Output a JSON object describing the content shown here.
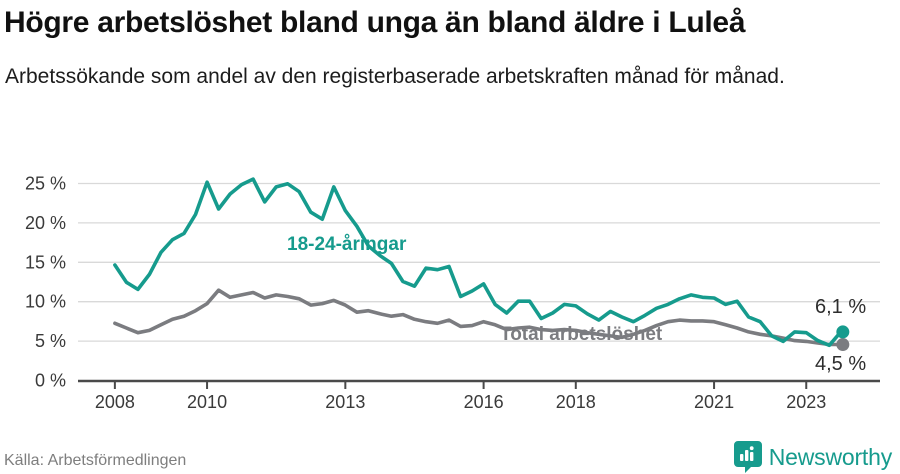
{
  "header": {
    "title": "Högre arbetslöshet bland unga än bland äldre i Luleå",
    "subtitle": "Arbetssökande som andel av den registerbaserade arbetskraften månad för månad."
  },
  "colors": {
    "teal": "#169b8d",
    "gray_line": "#7b7c80",
    "axis": "#4a4a4a",
    "grid": "#d9d9d9",
    "tick_text": "#3a3a3a"
  },
  "chart_data": {
    "type": "line",
    "title": "",
    "xlabel": "",
    "ylabel": "",
    "x_unit": "decimal_year",
    "ylim": [
      0,
      26.5
    ],
    "xlim": [
      2007.2,
      2024.6
    ],
    "grid": "horizontal",
    "legend_position": "inline-labels",
    "x": [
      2008.0,
      2008.25,
      2008.5,
      2008.75,
      2009.0,
      2009.25,
      2009.5,
      2009.75,
      2010.0,
      2010.25,
      2010.5,
      2010.75,
      2011.0,
      2011.25,
      2011.5,
      2011.75,
      2012.0,
      2012.25,
      2012.5,
      2012.75,
      2013.0,
      2013.25,
      2013.5,
      2013.75,
      2014.0,
      2014.25,
      2014.5,
      2014.75,
      2015.0,
      2015.25,
      2015.5,
      2015.75,
      2016.0,
      2016.25,
      2016.5,
      2016.75,
      2017.0,
      2017.25,
      2017.5,
      2017.75,
      2018.0,
      2018.25,
      2018.5,
      2018.75,
      2019.0,
      2019.25,
      2019.5,
      2019.75,
      2020.0,
      2020.25,
      2020.5,
      2020.75,
      2021.0,
      2021.25,
      2021.5,
      2021.75,
      2022.0,
      2022.25,
      2022.5,
      2022.75,
      2023.0,
      2023.25,
      2023.5,
      2023.75
    ],
    "series": [
      {
        "name": "18-24-åringar",
        "color": "#169b8d",
        "end_label": "6,1 %",
        "end_value": 6.1,
        "values": [
          14.6,
          12.4,
          11.5,
          13.4,
          16.2,
          17.8,
          18.6,
          21.0,
          25.1,
          21.7,
          23.6,
          24.8,
          25.5,
          22.6,
          24.5,
          24.9,
          23.9,
          21.3,
          20.4,
          24.5,
          21.5,
          19.5,
          17.0,
          15.8,
          14.8,
          12.5,
          11.9,
          14.2,
          14.0,
          14.4,
          10.6,
          11.3,
          12.2,
          9.6,
          8.5,
          10.0,
          10.0,
          7.8,
          8.5,
          9.6,
          9.4,
          8.4,
          7.6,
          8.7,
          8.0,
          7.4,
          8.2,
          9.1,
          9.6,
          10.3,
          10.8,
          10.5,
          10.4,
          9.6,
          10.0,
          8.0,
          7.4,
          5.6,
          4.9,
          6.1,
          6.0,
          5.0,
          4.4,
          6.1
        ]
      },
      {
        "name": "Total arbetslöshet",
        "color": "#7b7c80",
        "end_label": "4,5 %",
        "end_value": 4.5,
        "values": [
          7.2,
          6.6,
          6.0,
          6.3,
          7.0,
          7.7,
          8.1,
          8.8,
          9.7,
          11.4,
          10.5,
          10.8,
          11.1,
          10.4,
          10.8,
          10.6,
          10.3,
          9.5,
          9.7,
          10.1,
          9.5,
          8.6,
          8.8,
          8.4,
          8.1,
          8.3,
          7.7,
          7.4,
          7.2,
          7.6,
          6.8,
          6.9,
          7.4,
          7.0,
          6.4,
          6.6,
          6.7,
          6.4,
          6.3,
          6.4,
          6.3,
          6.0,
          5.8,
          5.6,
          5.4,
          5.8,
          6.3,
          6.9,
          7.4,
          7.6,
          7.5,
          7.5,
          7.4,
          7.0,
          6.6,
          6.1,
          5.8,
          5.6,
          5.3,
          5.0,
          4.9,
          4.7,
          4.5,
          4.5
        ]
      }
    ],
    "xticks": [
      {
        "v": 2008,
        "label": "2008"
      },
      {
        "v": 2010,
        "label": "2010"
      },
      {
        "v": 2013,
        "label": "2013"
      },
      {
        "v": 2016,
        "label": "2016"
      },
      {
        "v": 2018,
        "label": "2018"
      },
      {
        "v": 2021,
        "label": "2021"
      },
      {
        "v": 2023,
        "label": "2023"
      }
    ],
    "yticks": [
      {
        "v": 0,
        "label": "0 %"
      },
      {
        "v": 5,
        "label": "5 %"
      },
      {
        "v": 10,
        "label": "10 %"
      },
      {
        "v": 15,
        "label": "15 %"
      },
      {
        "v": 20,
        "label": "20 %"
      },
      {
        "v": 25,
        "label": "25 %"
      }
    ]
  },
  "footer": {
    "source": "Källa: Arbetsförmedlingen",
    "brand": "Newsworthy"
  }
}
